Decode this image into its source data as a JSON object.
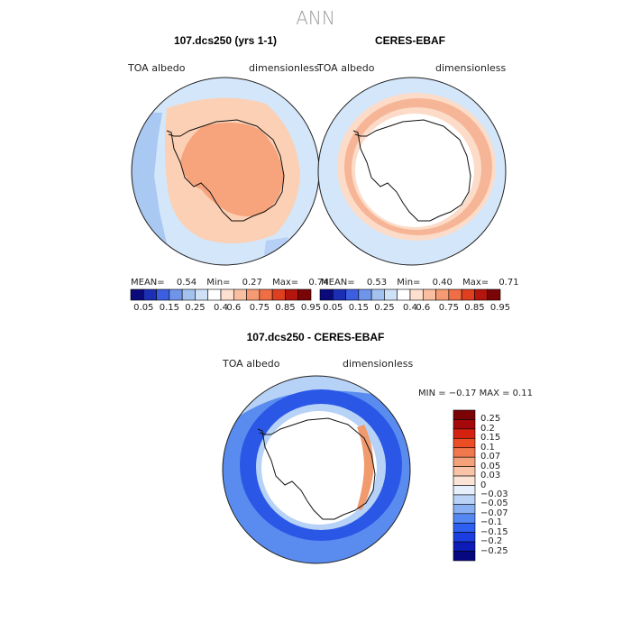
{
  "season": "ANN",
  "panels": [
    {
      "title": "107.dcs250 (yrs 1-1)",
      "var_label": "TOA albedo",
      "units": "dimensionless",
      "mean_label": "MEAN=",
      "mean": "0.54",
      "min_label": "Min=",
      "min": "0.27",
      "max_label": "Max=",
      "max": "0.74"
    },
    {
      "title": "CERES-EBAF",
      "var_label": "TOA albedo",
      "units": "dimensionless",
      "mean_label": "MEAN=",
      "mean": "0.53",
      "min_label": "Min=",
      "min": "0.40",
      "max_label": "Max=",
      "max": "0.71"
    }
  ],
  "diff_panel": {
    "title": "107.dcs250 - CERES-EBAF",
    "var_label": "TOA albedo",
    "units": "dimensionless",
    "minmax_text": "MIN =  −0.17 MAX =    0.11"
  },
  "colors": {
    "abs_bar": [
      "#0a0a7a",
      "#1b2fb5",
      "#3b5fe0",
      "#6f95ea",
      "#a3c2f0",
      "#cfe1f7",
      "#ffffff",
      "#fde0cf",
      "#f9bfa0",
      "#f59a73",
      "#ee6f45",
      "#dd3f1f",
      "#b4150c",
      "#7a0506"
    ],
    "diff_bar": [
      "#05087f",
      "#0d1bb8",
      "#1c3ee0",
      "#2f5ff0",
      "#5587f2",
      "#88b0f2",
      "#b9d2f6",
      "#e6effb",
      "#fbe4d6",
      "#f8c3a6",
      "#f4a078",
      "#f0784c",
      "#eb4d25",
      "#d3220f",
      "#a4080a",
      "#7b0305"
    ],
    "land_model": "#f7a47d",
    "land_ring_model": "#fbd0b4",
    "ocean_light": "#d4e6fa",
    "ocean_mid": "#a9c8f2",
    "ring_pink_obs": "#fcdcc8",
    "ring_salmon_obs": "#f6b596",
    "diff_blue_dark": "#2b57e6",
    "diff_blue_mid": "#5a8cf0",
    "diff_blue_light": "#b7d2f7",
    "diff_orange": "#f09a6e"
  },
  "chart_data": [
    {
      "type": "heatmap",
      "title": "107.dcs250 (yrs 1-1)",
      "subtitle": "TOA albedo",
      "units": "dimensionless",
      "stats": {
        "mean": 0.54,
        "min": 0.27,
        "max": 0.74
      },
      "colorbar_levels": [
        0.05,
        0.1,
        0.15,
        0.2,
        0.25,
        0.3,
        0.4,
        0.5,
        0.6,
        0.7,
        0.75,
        0.8,
        0.85,
        0.9,
        0.95
      ],
      "colorbar_tick_labels": [
        "0.05",
        "0.15",
        "0.25",
        "0.4",
        "0.6",
        "0.75",
        "0.85",
        "0.95"
      ]
    },
    {
      "type": "heatmap",
      "title": "CERES-EBAF",
      "subtitle": "TOA albedo",
      "units": "dimensionless",
      "stats": {
        "mean": 0.53,
        "min": 0.4,
        "max": 0.71
      },
      "colorbar_levels": [
        0.05,
        0.1,
        0.15,
        0.2,
        0.25,
        0.3,
        0.4,
        0.5,
        0.6,
        0.7,
        0.75,
        0.8,
        0.85,
        0.9,
        0.95
      ],
      "colorbar_tick_labels": [
        "0.05",
        "0.15",
        "0.25",
        "0.4",
        "0.6",
        "0.75",
        "0.85",
        "0.95"
      ]
    },
    {
      "type": "heatmap",
      "title": "107.dcs250 - CERES-EBAF",
      "subtitle": "TOA albedo",
      "units": "dimensionless",
      "stats": {
        "min": -0.17,
        "max": 0.11
      },
      "colorbar_tick_labels": [
        "0.25",
        "0.2",
        "0.15",
        "0.1",
        "0.07",
        "0.05",
        "0.03",
        "0",
        "−0.03",
        "−0.05",
        "−0.07",
        "−0.1",
        "−0.15",
        "−0.2",
        "−0.25"
      ]
    }
  ]
}
